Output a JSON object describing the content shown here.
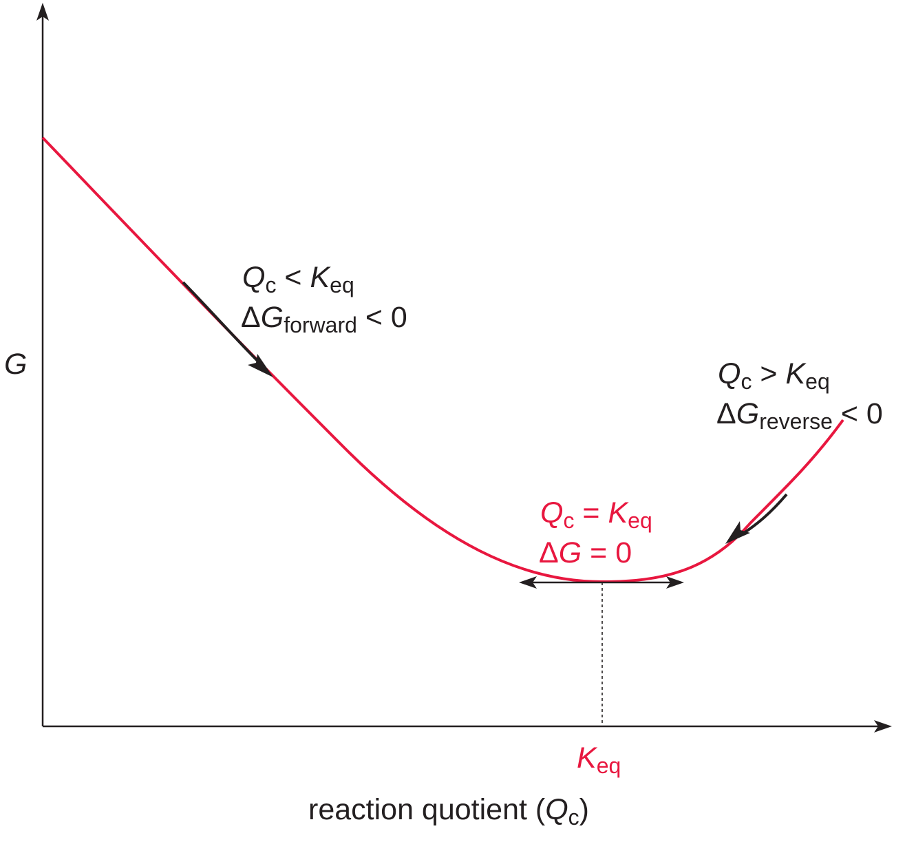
{
  "colors": {
    "curve": "#e8173f",
    "ink": "#231f20",
    "equilibrium": "#e8173f"
  },
  "axes": {
    "y_label": "G",
    "x_label_prefix": "reaction quotient (",
    "x_label_var": "Q",
    "x_label_sub": "c",
    "x_label_suffix": ")",
    "x_tick": {
      "var": "K",
      "sub": "eq"
    }
  },
  "forward": {
    "line1": {
      "var1": "Q",
      "sub1": "c",
      "op": " < ",
      "var2": "K",
      "sub2": "eq"
    },
    "line2": {
      "delta": "Δ",
      "var": "G",
      "sub": "forward",
      "rest": " < 0"
    }
  },
  "reverse": {
    "line1": {
      "var1": "Q",
      "sub1": "c",
      "op": " > ",
      "var2": "K",
      "sub2": "eq"
    },
    "line2": {
      "delta": "Δ",
      "var": "G",
      "sub": "reverse",
      "rest": " < 0"
    }
  },
  "equilibrium": {
    "line1": {
      "var1": "Q",
      "sub1": "c",
      "op": " = ",
      "var2": "K",
      "sub2": "eq"
    },
    "line2": {
      "delta": "Δ",
      "var": "G",
      "rest": " = 0"
    }
  }
}
